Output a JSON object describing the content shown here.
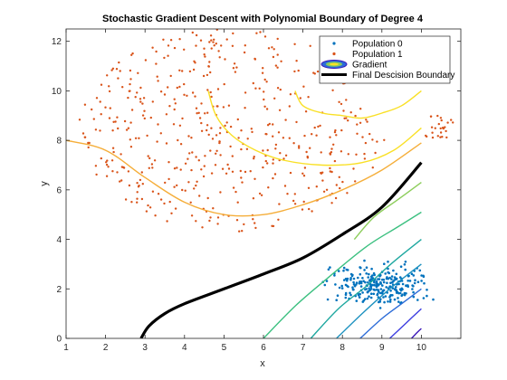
{
  "chart_data": {
    "type": "scatter",
    "title": "Stochastic Gradient Descent with Polynomial Boundary of Degree 4",
    "xlabel": "x",
    "ylabel": "y",
    "xlim": [
      1,
      11
    ],
    "ylim": [
      0,
      12.5
    ],
    "xticks": [
      1,
      2,
      3,
      4,
      5,
      6,
      7,
      8,
      9,
      10
    ],
    "yticks": [
      0,
      2,
      4,
      6,
      8,
      10,
      12
    ],
    "grid": false,
    "legend_position": "top-right",
    "legend": [
      {
        "label": "Population 0",
        "kind": "marker",
        "color": "#0072BD"
      },
      {
        "label": "Population 1",
        "kind": "marker",
        "color": "#D95319"
      },
      {
        "label": "Gradient",
        "kind": "ellipse"
      },
      {
        "label": "Final Descision Boundary",
        "kind": "line",
        "color": "#000000"
      }
    ],
    "series": [
      {
        "name": "Population 0",
        "color": "#0072BD",
        "point_cloud": {
          "count": 260,
          "x_center": 8.9,
          "x_halfwidth": 1.8,
          "y_center": 2.2,
          "y_halfwidth": 1.15
        }
      },
      {
        "name": "Population 1",
        "color": "#D95319",
        "point_cloud": {
          "count": 500,
          "x_center": 5.2,
          "y_center": 8.4,
          "radius_x": 3.9,
          "radius_y": 4.1
        }
      }
    ],
    "gradient_contours": [
      {
        "color": "#F9E026",
        "points": [
          [
            6.8,
            10.0
          ],
          [
            7.0,
            9.4
          ],
          [
            7.5,
            9.1
          ],
          [
            8.0,
            9.0
          ],
          [
            8.5,
            8.9
          ],
          [
            9.0,
            9.1
          ],
          [
            9.5,
            9.4
          ],
          [
            10.0,
            10.0
          ]
        ]
      },
      {
        "color": "#F9E026",
        "points": [
          [
            4.6,
            10.0
          ],
          [
            4.8,
            9.0
          ],
          [
            5.2,
            8.2
          ],
          [
            5.8,
            7.6
          ],
          [
            6.5,
            7.2
          ],
          [
            7.5,
            7.0
          ],
          [
            8.5,
            7.1
          ],
          [
            9.3,
            7.6
          ],
          [
            10.0,
            8.5
          ]
        ]
      },
      {
        "color": "#F5AE3A",
        "points": [
          [
            1.0,
            8.0
          ],
          [
            2.0,
            7.6
          ],
          [
            3.0,
            6.5
          ],
          [
            4.0,
            5.5
          ],
          [
            5.0,
            5.0
          ],
          [
            6.0,
            5.0
          ],
          [
            7.0,
            5.4
          ],
          [
            8.0,
            6.0
          ],
          [
            9.0,
            6.8
          ],
          [
            10.0,
            7.9
          ]
        ]
      },
      {
        "color": "#8CCD5A",
        "points": [
          [
            8.3,
            4.0
          ],
          [
            8.8,
            4.9
          ],
          [
            9.4,
            5.6
          ],
          [
            10.0,
            6.3
          ]
        ]
      },
      {
        "color": "#3CC080",
        "points": [
          [
            6.0,
            0.0
          ],
          [
            6.8,
            1.3
          ],
          [
            7.6,
            2.4
          ],
          [
            8.6,
            3.7
          ],
          [
            9.4,
            4.5
          ],
          [
            10.0,
            5.1
          ]
        ]
      },
      {
        "color": "#1FA8A0",
        "points": [
          [
            7.2,
            0.0
          ],
          [
            7.9,
            1.2
          ],
          [
            8.6,
            2.1
          ],
          [
            9.3,
            3.1
          ],
          [
            10.0,
            4.0
          ]
        ]
      },
      {
        "color": "#1E92C0",
        "points": [
          [
            7.85,
            0.0
          ],
          [
            8.5,
            1.0
          ],
          [
            9.2,
            2.0
          ],
          [
            10.0,
            3.0
          ]
        ]
      },
      {
        "color": "#2C6CD8",
        "points": [
          [
            8.45,
            0.0
          ],
          [
            9.0,
            0.8
          ],
          [
            9.5,
            1.4
          ],
          [
            10.0,
            2.0
          ]
        ]
      },
      {
        "color": "#3D3EE0",
        "points": [
          [
            9.2,
            0.0
          ],
          [
            9.6,
            0.6
          ],
          [
            10.0,
            1.2
          ]
        ]
      },
      {
        "color": "#3B18B8",
        "points": [
          [
            9.75,
            0.0
          ],
          [
            9.9,
            0.25
          ],
          [
            10.0,
            0.4
          ]
        ]
      }
    ],
    "final_boundary": {
      "name": "Final Descision Boundary",
      "color": "#000000",
      "points": [
        [
          2.9,
          0.0
        ],
        [
          3.1,
          0.5
        ],
        [
          3.5,
          1.0
        ],
        [
          4.0,
          1.4
        ],
        [
          5.0,
          2.0
        ],
        [
          6.0,
          2.6
        ],
        [
          7.0,
          3.25
        ],
        [
          8.0,
          4.2
        ],
        [
          9.0,
          5.3
        ],
        [
          10.0,
          7.1
        ]
      ]
    }
  }
}
